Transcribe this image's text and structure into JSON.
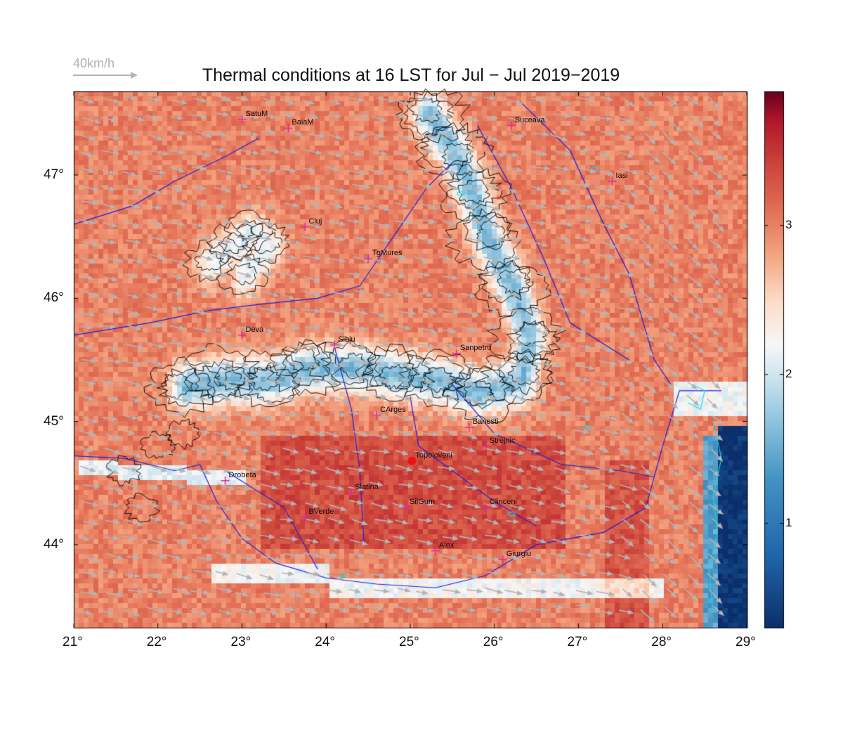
{
  "title": "Thermal conditions at 16 LST for Jul − Jul  2019−2019",
  "wind_reference": {
    "label": "40km/h",
    "color": "#b0b0b0"
  },
  "map": {
    "lon_ticks": [
      "21°",
      "22°",
      "23°",
      "24°",
      "25°",
      "26°",
      "27°",
      "28°",
      "29°"
    ],
    "lat_ticks": [
      "47°",
      "46°",
      "45°",
      "44°"
    ],
    "colorbar": {
      "ticks": [
        "3",
        "2",
        "1"
      ],
      "low_color": "#0b2f6b",
      "mid_color": "#f5f7fa",
      "high_color": "#6a0a1e"
    },
    "colors": {
      "river": "#1f1fd8",
      "contour": "#000000",
      "marker": "#e0239a",
      "wind": "#b4b4b4",
      "lake": "#00e5e5",
      "highlight": "#ee1111"
    },
    "cities": [
      {
        "name": "SatuM",
        "lon": 23.0,
        "lat": 47.45
      },
      {
        "name": "BaiaM",
        "lon": 23.55,
        "lat": 47.38
      },
      {
        "name": "Suceava",
        "lon": 26.2,
        "lat": 47.4
      },
      {
        "name": "Iasi",
        "lon": 27.4,
        "lat": 46.95
      },
      {
        "name": "Cluj",
        "lon": 23.75,
        "lat": 46.58
      },
      {
        "name": "TgMures",
        "lon": 24.5,
        "lat": 46.32
      },
      {
        "name": "Deva",
        "lon": 23.0,
        "lat": 45.7
      },
      {
        "name": "Sibiu",
        "lon": 24.1,
        "lat": 45.62
      },
      {
        "name": "Sanpetru",
        "lon": 25.55,
        "lat": 45.55
      },
      {
        "name": "CArges",
        "lon": 24.6,
        "lat": 45.05
      },
      {
        "name": "Banesti",
        "lon": 25.7,
        "lat": 44.95
      },
      {
        "name": "Strejnic",
        "lon": 25.9,
        "lat": 44.8
      },
      {
        "name": "Topoloveni",
        "lon": 25.02,
        "lat": 44.68,
        "highlight": true
      },
      {
        "name": "Drobeta",
        "lon": 22.8,
        "lat": 44.52
      },
      {
        "name": "Slatina",
        "lon": 24.3,
        "lat": 44.42
      },
      {
        "name": "SilGum",
        "lon": 24.95,
        "lat": 44.3
      },
      {
        "name": "Clinceni",
        "lon": 25.9,
        "lat": 44.3
      },
      {
        "name": "BVerde",
        "lon": 23.75,
        "lat": 44.22
      },
      {
        "name": "Alex",
        "lon": 25.3,
        "lat": 43.95
      },
      {
        "name": "Giurgiu",
        "lon": 26.1,
        "lat": 43.88
      }
    ]
  }
}
